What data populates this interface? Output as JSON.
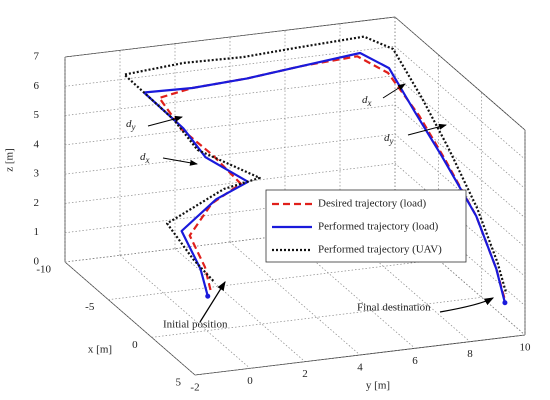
{
  "chart_data": {
    "type": "line3d",
    "xlabel": "x [m]",
    "ylabel": "y [m]",
    "zlabel": "z [m]",
    "xlim": [
      -10,
      5
    ],
    "ylim": [
      -2,
      10
    ],
    "zlim": [
      0,
      7
    ],
    "xticks": [
      -10,
      -5,
      0,
      5
    ],
    "yticks": [
      -2,
      0,
      2,
      4,
      6,
      8,
      10
    ],
    "zticks": [
      0,
      1,
      2,
      3,
      4,
      5,
      6,
      7
    ],
    "grid": true,
    "series": [
      {
        "name": "Desired trajectory (load)",
        "color": "#e0201b",
        "dash": "7 4",
        "x": [
          -4,
          -4,
          -4.5,
          -4.5,
          -4,
          -5,
          -6,
          -8,
          -8,
          -8,
          -8,
          -8,
          -7,
          -5,
          -3,
          0,
          2,
          3
        ],
        "y": [
          1.4,
          1.2,
          0.8,
          1.6,
          2.5,
          1.8,
          1,
          0.8,
          2,
          4,
          6,
          8,
          8.8,
          9.3,
          9.6,
          9.8,
          9.9,
          9.9
        ],
        "z": [
          0.2,
          1,
          2,
          3,
          3.7,
          4.5,
          5.2,
          5.8,
          6.0,
          6.1,
          6.3,
          6.4,
          6.0,
          5,
          4,
          2.8,
          1.5,
          0.7
        ]
      },
      {
        "name": "Performed trajectory (load)",
        "color": "#1a1adb",
        "dash": "",
        "x": [
          -4,
          -4.2,
          -4.8,
          -4.6,
          -3.8,
          -5.2,
          -6.5,
          -8.5,
          -8,
          -8,
          -8,
          -8,
          -7.2,
          -5.2,
          -3,
          0,
          2,
          3
        ],
        "y": [
          1.3,
          1.1,
          0.6,
          1.8,
          2.7,
          1.6,
          1.2,
          0.4,
          2,
          4,
          6,
          8.1,
          8.9,
          9.2,
          9.5,
          9.8,
          9.9,
          9.9
        ],
        "z": [
          0.0,
          0.9,
          2.1,
          3.1,
          3.8,
          4.4,
          5.1,
          5.9,
          6.0,
          6.1,
          6.3,
          6.5,
          6.1,
          5.1,
          4.1,
          2.8,
          1.5,
          0.6
        ]
      },
      {
        "name": "Performed trajectory (UAV)",
        "color": "#111111",
        "dash": "2 2",
        "x": [
          -4,
          -4.4,
          -5.2,
          -5,
          -3.4,
          -5.5,
          -7,
          -9.5,
          -9,
          -8.5,
          -8.5,
          -8.5,
          -8,
          -5.6,
          -3.2,
          -0.2,
          2,
          3
        ],
        "y": [
          1.5,
          0.9,
          0.2,
          2.2,
          3.0,
          1.4,
          1.0,
          0.0,
          2,
          4,
          6,
          8.4,
          9.3,
          9.6,
          9.8,
          9.9,
          9.95,
          9.95
        ],
        "z": [
          0.5,
          1.2,
          2.3,
          3.3,
          4.0,
          4.6,
          5.3,
          6.3,
          6.6,
          6.7,
          6.8,
          6.9,
          6.5,
          5.4,
          4.3,
          3.0,
          1.7,
          0.9
        ]
      }
    ],
    "annotations": {
      "initial": "Initial position",
      "final": "Final destination",
      "dy_left": {
        "text": "d",
        "sub": "y"
      },
      "dx_left": {
        "text": "d",
        "sub": "x"
      },
      "dx_right": {
        "text": "d",
        "sub": "x"
      },
      "dy_right": {
        "text": "d",
        "sub": "y"
      }
    }
  }
}
